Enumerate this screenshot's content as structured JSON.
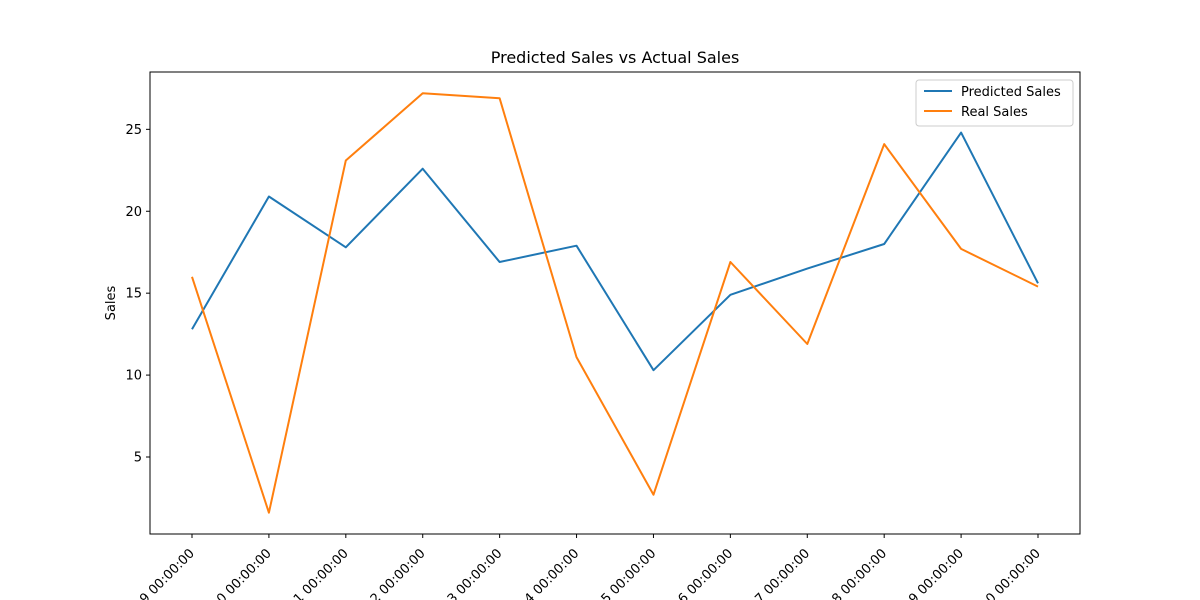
{
  "chart_data": {
    "type": "line",
    "title": "Predicted Sales vs Actual Sales",
    "xlabel": "",
    "ylabel": "Sales",
    "x_tick_labels": [
      "9 00:00:00",
      "0 00:00:00",
      "1 00:00:00",
      "2 00:00:00",
      "3 00:00:00",
      "4 00:00:00",
      "5 00:00:00",
      "6 00:00:00",
      "7 00:00:00",
      "8 00:00:00",
      "9 00:00:00",
      "0 00:00:00"
    ],
    "y_ticks": [
      5,
      10,
      15,
      20,
      25
    ],
    "ylim": [
      0.3,
      28.5
    ],
    "grid": false,
    "legend_position": "top-right",
    "series": [
      {
        "name": "Predicted Sales",
        "color": "#1f77b4",
        "values": [
          12.8,
          20.9,
          17.8,
          22.6,
          16.9,
          17.9,
          10.3,
          14.9,
          16.5,
          18.0,
          24.8,
          15.6
        ]
      },
      {
        "name": "Real Sales",
        "color": "#ff7f0e",
        "values": [
          16.0,
          1.6,
          23.1,
          27.2,
          26.9,
          11.1,
          2.7,
          16.9,
          11.9,
          24.1,
          17.7,
          15.4
        ]
      }
    ]
  }
}
